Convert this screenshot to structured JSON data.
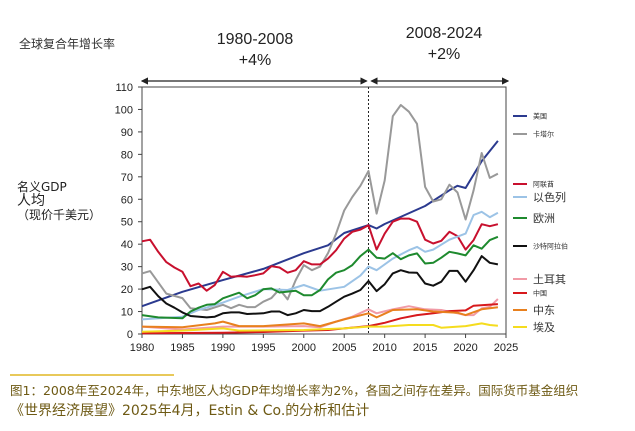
{
  "header": {
    "cagr_label": "全球复合年增长率",
    "period1": {
      "range": "1980-2008",
      "growth": "+4%"
    },
    "period2": {
      "range": "2008-2024",
      "growth": "+2%"
    }
  },
  "ylabel_lines": [
    "名义GDP",
    "人均",
    "（现价千美元）"
  ],
  "caption": {
    "line1": "图1：2008年至2024年，中东地区人均GDP年均增长率为2%，各国之间存在差异。国际货币基金组织",
    "line2": "《世界经济展望》2025年4月，Estin & Co.的分析和估计",
    "accent_color": "#e8c95a",
    "text_color": "#6e5a14"
  },
  "chart_data": {
    "type": "line",
    "title": "",
    "xlabel": "",
    "ylabel": "名义GDP 人均（现价千美元）",
    "xlim": [
      1980,
      2025
    ],
    "ylim": [
      0,
      110
    ],
    "xticks": [
      1980,
      1985,
      1990,
      1995,
      2000,
      2005,
      2010,
      2015,
      2020,
      2025
    ],
    "yticks": [
      0,
      10,
      20,
      30,
      40,
      50,
      60,
      70,
      80,
      90,
      100,
      110
    ],
    "grid": false,
    "legend_position": "right",
    "reference_line": {
      "x": 2008,
      "style": "dashed"
    },
    "series": [
      {
        "name": "美国",
        "color": "#2b3a8f",
        "x": [
          1980,
          1985,
          1990,
          1995,
          2000,
          2003,
          2005,
          2008,
          2009,
          2010,
          2015,
          2018,
          2019,
          2020,
          2022,
          2024
        ],
        "y": [
          12.4,
          18.8,
          24,
          29,
          36,
          39.5,
          45,
          48.5,
          47,
          49,
          57,
          64,
          66,
          65,
          77,
          86
        ]
      },
      {
        "name": "卡塔尔",
        "color": "#999999",
        "x": [
          1980,
          1981,
          1983,
          1985,
          1986,
          1988,
          1990,
          1991,
          1992,
          1993,
          1994,
          1995,
          1996,
          1997,
          1998,
          1999,
          2000,
          2001,
          2002,
          2003,
          2004,
          2005,
          2006,
          2007,
          2008,
          2009,
          2010,
          2011,
          2012,
          2013,
          2014,
          2015,
          2016,
          2017,
          2018,
          2019,
          2020,
          2021,
          2022,
          2023,
          2024
        ],
        "y": [
          27,
          28,
          18,
          16,
          11.5,
          10.7,
          13,
          11.5,
          13,
          12,
          12,
          14.4,
          16,
          20,
          15.4,
          24,
          30.7,
          28.4,
          30,
          36,
          44.7,
          55,
          61,
          66,
          72.6,
          53.6,
          68.4,
          97,
          102,
          99,
          93.6,
          65.5,
          59,
          60,
          66.5,
          63,
          51,
          64,
          80.6,
          69.5,
          71.4
        ]
      },
      {
        "name": "阿联酋",
        "color": "#c8102e",
        "x": [
          1980,
          1981,
          1982,
          1983,
          1984,
          1985,
          1986,
          1987,
          1988,
          1989,
          1990,
          1991,
          1992,
          1993,
          1994,
          1995,
          1996,
          1997,
          1998,
          1999,
          2000,
          2001,
          2002,
          2003,
          2004,
          2005,
          2006,
          2007,
          2008,
          2009,
          2010,
          2011,
          2012,
          2013,
          2014,
          2015,
          2016,
          2017,
          2018,
          2019,
          2020,
          2021,
          2022,
          2023,
          2024
        ],
        "y": [
          41.3,
          42,
          36.6,
          32,
          29.6,
          27.7,
          21.3,
          22.5,
          19.3,
          21.8,
          27.7,
          25.5,
          25.8,
          25.5,
          26.2,
          27,
          30.2,
          29.6,
          27.3,
          28.4,
          32.4,
          31,
          31,
          33.6,
          37.3,
          42.5,
          45.5,
          46.5,
          48.4,
          37.6,
          44.7,
          50,
          51.4,
          51.4,
          50,
          42,
          40.3,
          41.5,
          45.5,
          43.6,
          37.6,
          41.8,
          48.9,
          48,
          48.9
        ]
      },
      {
        "name": "以色列",
        "color": "#9cc3e6",
        "x": [
          1980,
          1985,
          1987,
          1990,
          1992,
          1995,
          1998,
          2000,
          2002,
          2005,
          2007,
          2008,
          2009,
          2011,
          2013,
          2014,
          2015,
          2016,
          2018,
          2020,
          2021,
          2022,
          2023,
          2024
        ],
        "y": [
          6.5,
          7.7,
          10.7,
          14,
          16.6,
          20,
          19.6,
          21.8,
          19.3,
          21,
          26,
          30,
          28.4,
          33.6,
          37.3,
          38.8,
          36.6,
          37.6,
          42,
          44.7,
          53,
          54.4,
          52,
          54
        ]
      },
      {
        "name": "欧洲",
        "color": "#1e8a2e",
        "x": [
          1980,
          1982,
          1985,
          1986,
          1987,
          1988,
          1989,
          1990,
          1992,
          1993,
          1994,
          1995,
          1996,
          1997,
          1999,
          2000,
          2001,
          2002,
          2003,
          2004,
          2005,
          2006,
          2007,
          2008,
          2009,
          2010,
          2011,
          2012,
          2013,
          2014,
          2015,
          2016,
          2017,
          2018,
          2019,
          2020,
          2021,
          2022,
          2023,
          2024
        ],
        "y": [
          8.4,
          7.4,
          7,
          10,
          11.7,
          13,
          13.3,
          15.9,
          18.4,
          15.9,
          17.3,
          19.9,
          20.3,
          18.5,
          19.3,
          17.3,
          17.3,
          19.6,
          24.3,
          27.3,
          28.4,
          30.7,
          34.7,
          37.6,
          34,
          33.6,
          36,
          33.3,
          35,
          35.9,
          31.4,
          31.7,
          34,
          36.6,
          35.9,
          35,
          39.5,
          38,
          41.8,
          43.3
        ]
      },
      {
        "name": "沙特阿拉伯",
        "color": "#111111",
        "x": [
          1980,
          1981,
          1982,
          1983,
          1984,
          1985,
          1986,
          1988,
          1989,
          1990,
          1991,
          1992,
          1993,
          1995,
          1996,
          1997,
          1998,
          1999,
          2000,
          2001,
          2002,
          2003,
          2004,
          2005,
          2006,
          2007,
          2008,
          2009,
          2010,
          2011,
          2012,
          2013,
          2014,
          2015,
          2016,
          2017,
          2018,
          2019,
          2020,
          2021,
          2022,
          2023,
          2024
        ],
        "y": [
          19.9,
          21,
          16.9,
          13.6,
          11.7,
          9.6,
          8,
          7.4,
          7.7,
          9.2,
          9.6,
          9.6,
          8.9,
          9.2,
          10,
          10,
          8.4,
          9.2,
          10.7,
          10.2,
          10.2,
          12.1,
          14.4,
          16.6,
          18,
          19.6,
          23.6,
          19.1,
          22.2,
          27,
          28.4,
          27.4,
          27.3,
          22.5,
          21.5,
          23.3,
          28.1,
          28.1,
          23.3,
          28.4,
          34.7,
          31.7,
          31
        ]
      },
      {
        "name": "土耳其",
        "color": "#f19aa6",
        "x": [
          1980,
          1985,
          1990,
          1995,
          2000,
          2002,
          2004,
          2006,
          2008,
          2009,
          2011,
          2013,
          2015,
          2017,
          2019,
          2020,
          2021,
          2022,
          2023,
          2024
        ],
        "y": [
          3.3,
          2,
          3.3,
          3.3,
          3.5,
          3,
          5.5,
          7.7,
          11,
          9.2,
          11,
          12.4,
          11,
          10.7,
          9.2,
          8.4,
          8.4,
          11.4,
          12.1,
          15.6
        ]
      },
      {
        "name": "中国",
        "color": "#d7191c",
        "x": [
          1980,
          1990,
          1995,
          2000,
          2003,
          2005,
          2008,
          2010,
          2012,
          2014,
          2016,
          2018,
          2020,
          2021,
          2024
        ],
        "y": [
          0.3,
          0.6,
          0.9,
          1.5,
          1.8,
          2.5,
          3.5,
          5,
          7,
          8.4,
          9.2,
          10.2,
          10.5,
          12.6,
          13.3
        ]
      },
      {
        "name": "中东",
        "color": "#e8801e",
        "x": [
          1980,
          1985,
          1989,
          1990,
          1992,
          1995,
          2000,
          2002,
          2005,
          2008,
          2009,
          2011,
          2014,
          2016,
          2019,
          2020,
          2022,
          2024
        ],
        "y": [
          3.3,
          3,
          4.7,
          5.5,
          3.5,
          3.5,
          4.7,
          3.5,
          6.5,
          9.2,
          7.4,
          10.7,
          11,
          10,
          9.5,
          8.4,
          11,
          11.9
        ]
      },
      {
        "name": "埃及",
        "color": "#f5dc1e",
        "x": [
          1980,
          1985,
          1990,
          1992,
          2000,
          2005,
          2008,
          2010,
          2013,
          2016,
          2017,
          2020,
          2022,
          2023,
          2024
        ],
        "y": [
          1,
          1.5,
          2.5,
          1.5,
          1.8,
          2.5,
          3.3,
          3.3,
          4,
          4,
          2.8,
          3.5,
          4.7,
          4,
          3.7
        ]
      }
    ]
  }
}
